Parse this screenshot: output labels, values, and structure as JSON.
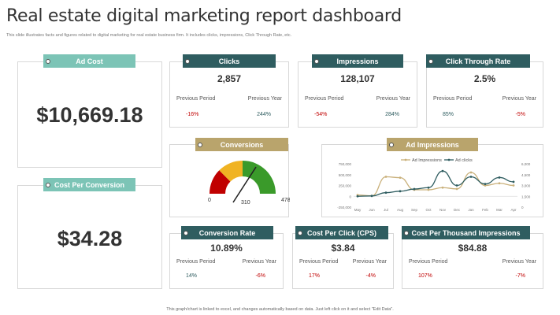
{
  "title": "Real estate  digital marketing report dashboard",
  "subtitle": "This slide illustrates facts and figures related to digital marketing  for real estate business firm. It includes clicks, impressions, Click Through Rate,  etc.",
  "ad_cost": {
    "label": "Ad Cost",
    "value": "$10,669.18"
  },
  "cost_per_conversion": {
    "label": "Cost Per Conversion",
    "value": "$34.28"
  },
  "clicks": {
    "label": "Clicks",
    "value": "2,857",
    "prev_label": "Previous Period",
    "year_label": "Previous Year",
    "prev": "-16%",
    "year": "244%"
  },
  "impressions": {
    "label": "Impressions",
    "value": "128,107",
    "prev_label": "Previous Period",
    "year_label": "Previous Year",
    "prev": "-54%",
    "year": "284%"
  },
  "ctr": {
    "label": "Click Through Rate",
    "value": "2.5%",
    "prev_label": "Previous Period",
    "year_label": "Previous Year",
    "prev": "85%",
    "year": "-5%"
  },
  "conversions": {
    "label": "Conversions",
    "min": "0",
    "max": "478",
    "value": "310",
    "fraction": 0.648
  },
  "conversion_rate": {
    "label": "Conversion Rate",
    "value": "10.89%",
    "prev_label": "Previous Period",
    "year_label": "Previous Year",
    "prev": "14%",
    "year": "-6%"
  },
  "cpc": {
    "label": "Cost Per Click (CPS)",
    "value": "$3.84",
    "prev_label": "Previous Period",
    "year_label": "Previous Year",
    "prev": "17%",
    "year": "-4%"
  },
  "cpm": {
    "label": "Cost Per Thousand Impressions",
    "value": "$84.88",
    "prev_label": "Previous Period",
    "year_label": "Previous Year",
    "prev": "107%",
    "year": "-7%"
  },
  "footer": "This graph/chart is linked to excel, and changes automatically based on data. Just left click on it and select \"Edit Data\".",
  "chart_data": {
    "type": "line",
    "title": "Ad Impressions",
    "categories": [
      "May",
      "Jun",
      "Jul",
      "Aug",
      "Sep",
      "Oct",
      "Nov",
      "Dec",
      "Jan",
      "Feb",
      "Mar",
      "Apr"
    ],
    "series": [
      {
        "name": "Ad Impressions",
        "axis": "left",
        "color": "#c9b07a",
        "values": [
          30000,
          10000,
          450000,
          430000,
          150000,
          150000,
          200000,
          170000,
          550000,
          250000,
          300000,
          250000
        ]
      },
      {
        "name": "Ad clicks",
        "axis": "right",
        "color": "#2f5d60",
        "values": [
          1500,
          1550,
          2000,
          2200,
          2500,
          2700,
          5000,
          3000,
          4200,
          3200,
          4100,
          3500
        ]
      }
    ],
    "left_ticks": [
      "750,000",
      "500,000",
      "250,000",
      "0",
      "-250,000"
    ],
    "left_range": [
      -250000,
      750000
    ],
    "right_ticks": [
      "6,000",
      "4,500",
      "3,000",
      "1,500",
      "0"
    ],
    "right_range": [
      0,
      6000
    ]
  }
}
